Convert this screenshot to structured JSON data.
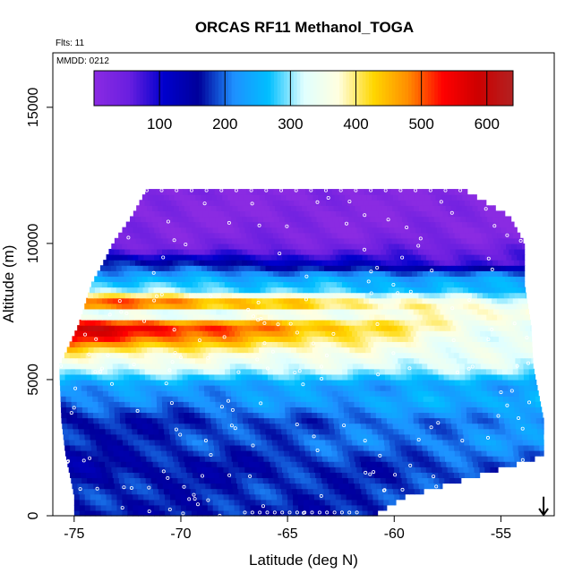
{
  "chart_data": {
    "type": "heatmap",
    "title": "ORCAS RF11 Methanol_TOGA",
    "annotations": {
      "flights": "Flts: 11",
      "date": "MMDD: 0212"
    },
    "xlabel": "Latitude (deg N)",
    "ylabel": "Altitude (m)",
    "xlim": [
      -76,
      -52.5
    ],
    "ylim": [
      0,
      17000
    ],
    "x_ticks": [
      -75,
      -70,
      -65,
      -60,
      -55
    ],
    "x_tick_labels": [
      "-75",
      "-70",
      "-65",
      "-60",
      "-55"
    ],
    "y_ticks": [
      0,
      5000,
      10000,
      15000
    ],
    "y_tick_labels": [
      "0",
      "5000",
      "10000",
      "15000"
    ],
    "colorbar": {
      "range": [
        0,
        640
      ],
      "ticks": [
        100,
        200,
        300,
        400,
        500,
        600
      ],
      "tick_labels": [
        "100",
        "200",
        "300",
        "400",
        "500",
        "600"
      ],
      "colors": [
        "#8a2be2",
        "#6a1fe0",
        "#0000cd",
        "#00009a",
        "#1e90ff",
        "#00bfff",
        "#e0ffff",
        "#ffffe0",
        "#ffd700",
        "#ff8c00",
        "#ff0000",
        "#cd0000",
        "#b22222"
      ]
    },
    "domain_bounds": [
      {
        "alt": 0,
        "lat_min": -75.0,
        "lat_max": -61.0
      },
      {
        "alt": 700,
        "lat_min": -75.0,
        "lat_max": -59.5
      },
      {
        "alt": 1500,
        "lat_min": -75.2,
        "lat_max": -56.0
      },
      {
        "alt": 2200,
        "lat_min": -75.4,
        "lat_max": -53.0
      },
      {
        "alt": 3500,
        "lat_min": -75.6,
        "lat_max": -53.0
      },
      {
        "alt": 5500,
        "lat_min": -75.7,
        "lat_max": -53.5
      },
      {
        "alt": 7000,
        "lat_min": -74.8,
        "lat_max": -53.6
      },
      {
        "alt": 8500,
        "lat_min": -74.2,
        "lat_max": -53.9
      },
      {
        "alt": 9500,
        "lat_min": -73.5,
        "lat_max": -53.9
      },
      {
        "alt": 10000,
        "lat_min": -73.2,
        "lat_max": -53.9
      },
      {
        "alt": 11000,
        "lat_min": -72.3,
        "lat_max": -54.6
      },
      {
        "alt": 12000,
        "lat_min": -71.6,
        "lat_max": -56.8
      }
    ],
    "field_bands": [
      {
        "alt": 0,
        "w": 165,
        "e": 165
      },
      {
        "alt": 800,
        "w": 175,
        "e": 180
      },
      {
        "alt": 1800,
        "w": 150,
        "e": 185
      },
      {
        "alt": 2700,
        "w": 170,
        "e": 225
      },
      {
        "alt": 3500,
        "w": 160,
        "e": 215
      },
      {
        "alt": 4200,
        "w": 200,
        "e": 260
      },
      {
        "alt": 4800,
        "w": 230,
        "e": 230
      },
      {
        "alt": 5400,
        "w": 330,
        "e": 315
      },
      {
        "alt": 6000,
        "w": 395,
        "e": 330
      },
      {
        "alt": 6600,
        "w": 560,
        "e": 310
      },
      {
        "alt": 7000,
        "w": 600,
        "e": 330
      },
      {
        "alt": 7400,
        "w": 250,
        "e": 390
      },
      {
        "alt": 7800,
        "w": 560,
        "e": 335
      },
      {
        "alt": 8300,
        "w": 310,
        "e": 250
      },
      {
        "alt": 8800,
        "w": 240,
        "e": 230
      },
      {
        "alt": 9300,
        "w": 180,
        "e": 60
      },
      {
        "alt": 9800,
        "w": 40,
        "e": 50
      },
      {
        "alt": 10300,
        "w": 25,
        "e": 15
      },
      {
        "alt": 11000,
        "w": 10,
        "e": 10
      },
      {
        "alt": 12000,
        "w": 10,
        "e": 10
      }
    ],
    "arrow": {
      "lat": -53.0,
      "alt_top": 700,
      "alt_bottom": 0
    }
  }
}
